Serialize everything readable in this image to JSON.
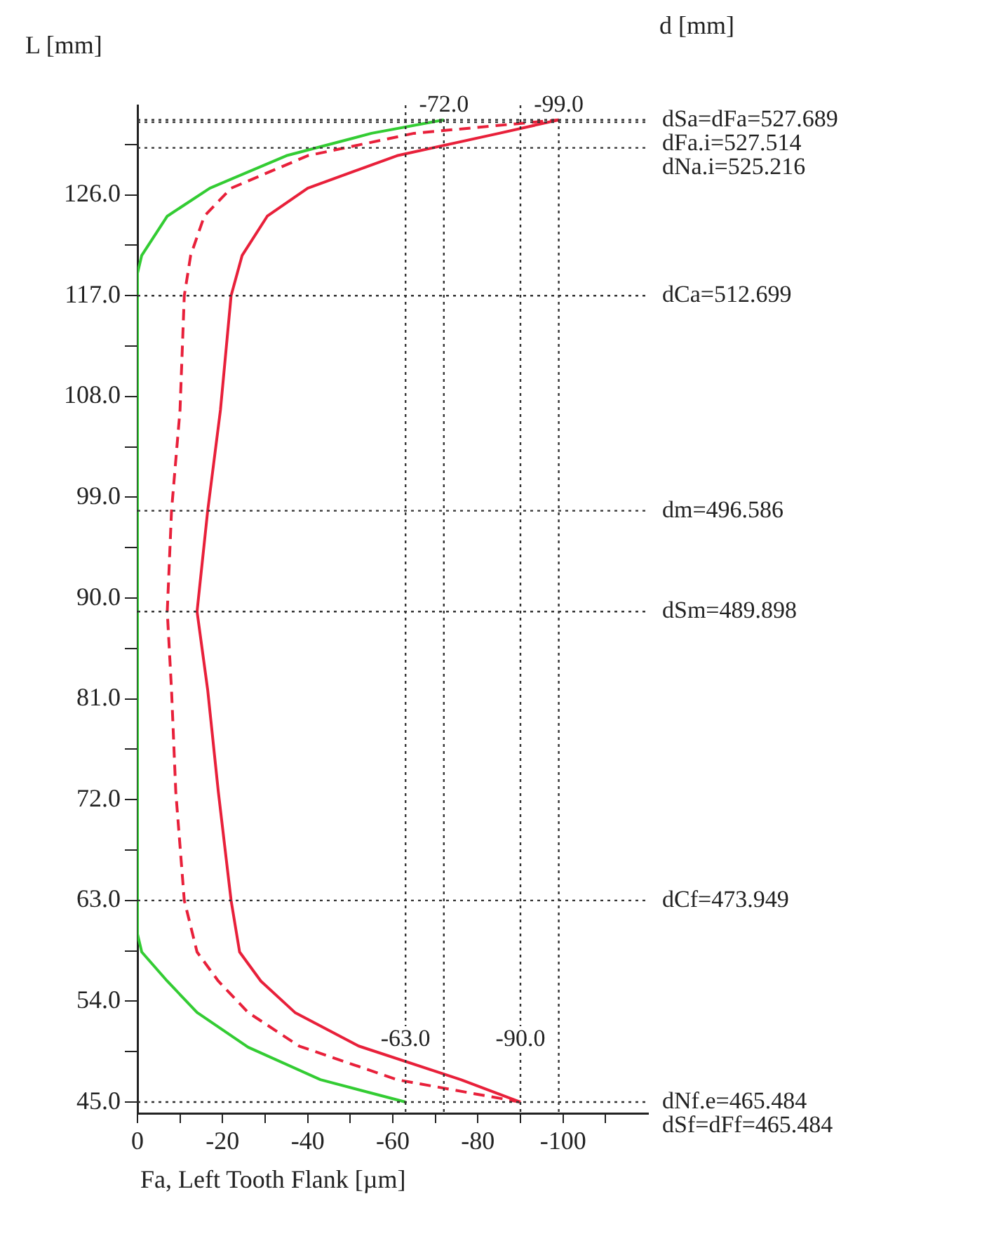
{
  "chart_data": {
    "type": "line",
    "xlabel": "Fa, Left Tooth Flank [µm]",
    "ylabel": "L [mm]",
    "annotations": [
      "d [mm]",
      {
        "text": "dSa=dFa=527.689",
        "x": -120,
        "y": 132.7
      },
      {
        "text": "dFa.i=527.514",
        "x": -120,
        "y": 132.5
      },
      {
        "text": "dNa.i=525.216",
        "x": -120,
        "y": 130.2
      },
      {
        "text": "dCa=512.699",
        "x": -120,
        "y": 117
      },
      {
        "text": "dm=496.586",
        "x": -120,
        "y": 97.8
      },
      {
        "text": "dSm=489.898",
        "x": -120,
        "y": 88.8
      },
      {
        "text": "dCf=473.949",
        "x": -120,
        "y": 63
      },
      {
        "text": "dNf.e=465.484",
        "x": -120,
        "y": 45
      },
      {
        "text": "dSf=dFf=465.484",
        "x": -120,
        "y": 45
      },
      {
        "text": "-72.0",
        "x": -72,
        "y": 132.7
      },
      {
        "text": "-99.0",
        "x": -99,
        "y": 132.7
      },
      {
        "text": "-63.0",
        "x": -63,
        "y": 45
      },
      {
        "text": "-90.0",
        "x": -90,
        "y": 45
      }
    ],
    "xlim": [
      0,
      -120
    ],
    "xticks": [
      0,
      {
        "value": -10,
        "label": null
      },
      -20,
      {
        "value": -30,
        "label": null
      },
      -40,
      {
        "value": -50,
        "label": null
      },
      -60,
      {
        "value": -70,
        "label": null
      },
      -80,
      {
        "value": -90,
        "label": null
      },
      -100,
      {
        "value": -110,
        "label": null
      }
    ],
    "ylim": [
      44,
      134
    ],
    "yticks": [
      {
        "value": 45,
        "label": "45.0"
      },
      {
        "value": 49.5,
        "label": null
      },
      {
        "value": 54,
        "label": "54.0"
      },
      {
        "value": 58.5,
        "label": null
      },
      {
        "value": 63,
        "label": "63.0"
      },
      {
        "value": 67.5,
        "label": null
      },
      {
        "value": 72,
        "label": "72.0"
      },
      {
        "value": 76.5,
        "label": null
      },
      {
        "value": 81,
        "label": "81.0"
      },
      {
        "value": 85.5,
        "label": null
      },
      {
        "value": 90,
        "label": "90.0"
      },
      {
        "value": 94.5,
        "label": null
      },
      {
        "value": 99,
        "label": "99.0"
      },
      {
        "value": 103.5,
        "label": null
      },
      {
        "value": 108,
        "label": "108.0"
      },
      {
        "value": 112.5,
        "label": null
      },
      {
        "value": 117,
        "label": "117.0"
      },
      {
        "value": 121.5,
        "label": null
      },
      {
        "value": 126,
        "label": "126.0"
      },
      {
        "value": 130.5,
        "label": null
      }
    ],
    "grid": false,
    "legend": false,
    "marker": "none",
    "series": [
      {
        "color": "#33cc33",
        "line_style": "solid",
        "x": [
          -63,
          -43,
          -26,
          -14,
          -7,
          -1,
          0,
          0,
          -1,
          -7,
          -17,
          -35,
          -55,
          -72
        ],
        "values": [
          45,
          47,
          49.9,
          53,
          55.8,
          58.4,
          60,
          119,
          120.6,
          124.1,
          126.6,
          129.5,
          131.5,
          132.7
        ]
      },
      {
        "color": "#e8203a",
        "line_style": "dashed",
        "x": [
          -90,
          -61,
          -38,
          -26,
          -19,
          -14,
          -11,
          -9,
          -8,
          -7,
          -8,
          -10,
          -11,
          -12.5,
          -15.7,
          -22,
          -40,
          -65,
          -99
        ],
        "values": [
          45,
          47,
          50,
          53,
          55.8,
          58.4,
          63,
          72.7,
          81.8,
          88.8,
          97.8,
          106.8,
          117,
          120.6,
          124.1,
          126.6,
          129.5,
          131.5,
          132.7
        ]
      },
      {
        "color": "#e8203a",
        "line_style": "solid",
        "x": [
          -90,
          -76,
          -52,
          -37,
          -29,
          -24,
          -22,
          -19,
          -16.5,
          -14,
          -16.5,
          -19.5,
          -22,
          -24.6,
          -30.5,
          -40,
          -61,
          -85,
          -99
        ],
        "values": [
          45,
          47,
          50,
          53,
          55.8,
          58.4,
          63,
          72.7,
          81.8,
          88.8,
          97.8,
          106.8,
          117,
          120.6,
          124.1,
          126.6,
          129.5,
          131.5,
          132.7
        ]
      }
    ],
    "ref_lines": [
      {
        "axis": "y",
        "value": 132.7,
        "line_style": "dotted",
        "color": "#333333"
      },
      {
        "axis": "y",
        "value": 132.5,
        "line_style": "dotted",
        "color": "#333333"
      },
      {
        "axis": "y",
        "value": 130.2,
        "line_style": "dotted",
        "color": "#333333"
      },
      {
        "axis": "y",
        "value": 117,
        "line_style": "dotted",
        "color": "#333333"
      },
      {
        "axis": "y",
        "value": 97.8,
        "line_style": "dotted",
        "color": "#333333"
      },
      {
        "axis": "y",
        "value": 88.8,
        "line_style": "dotted",
        "color": "#333333"
      },
      {
        "axis": "y",
        "value": 63,
        "line_style": "dotted",
        "color": "#333333"
      },
      {
        "axis": "y",
        "value": 45,
        "line_style": "dotted",
        "color": "#333333"
      },
      {
        "axis": "x",
        "value": -63,
        "line_style": "dotted",
        "color": "#333333"
      },
      {
        "axis": "x",
        "value": -72,
        "line_style": "dotted",
        "color": "#333333"
      },
      {
        "axis": "x",
        "value": -90,
        "line_style": "dotted",
        "color": "#333333"
      },
      {
        "axis": "x",
        "value": -99,
        "line_style": "dotted",
        "color": "#333333"
      }
    ]
  }
}
